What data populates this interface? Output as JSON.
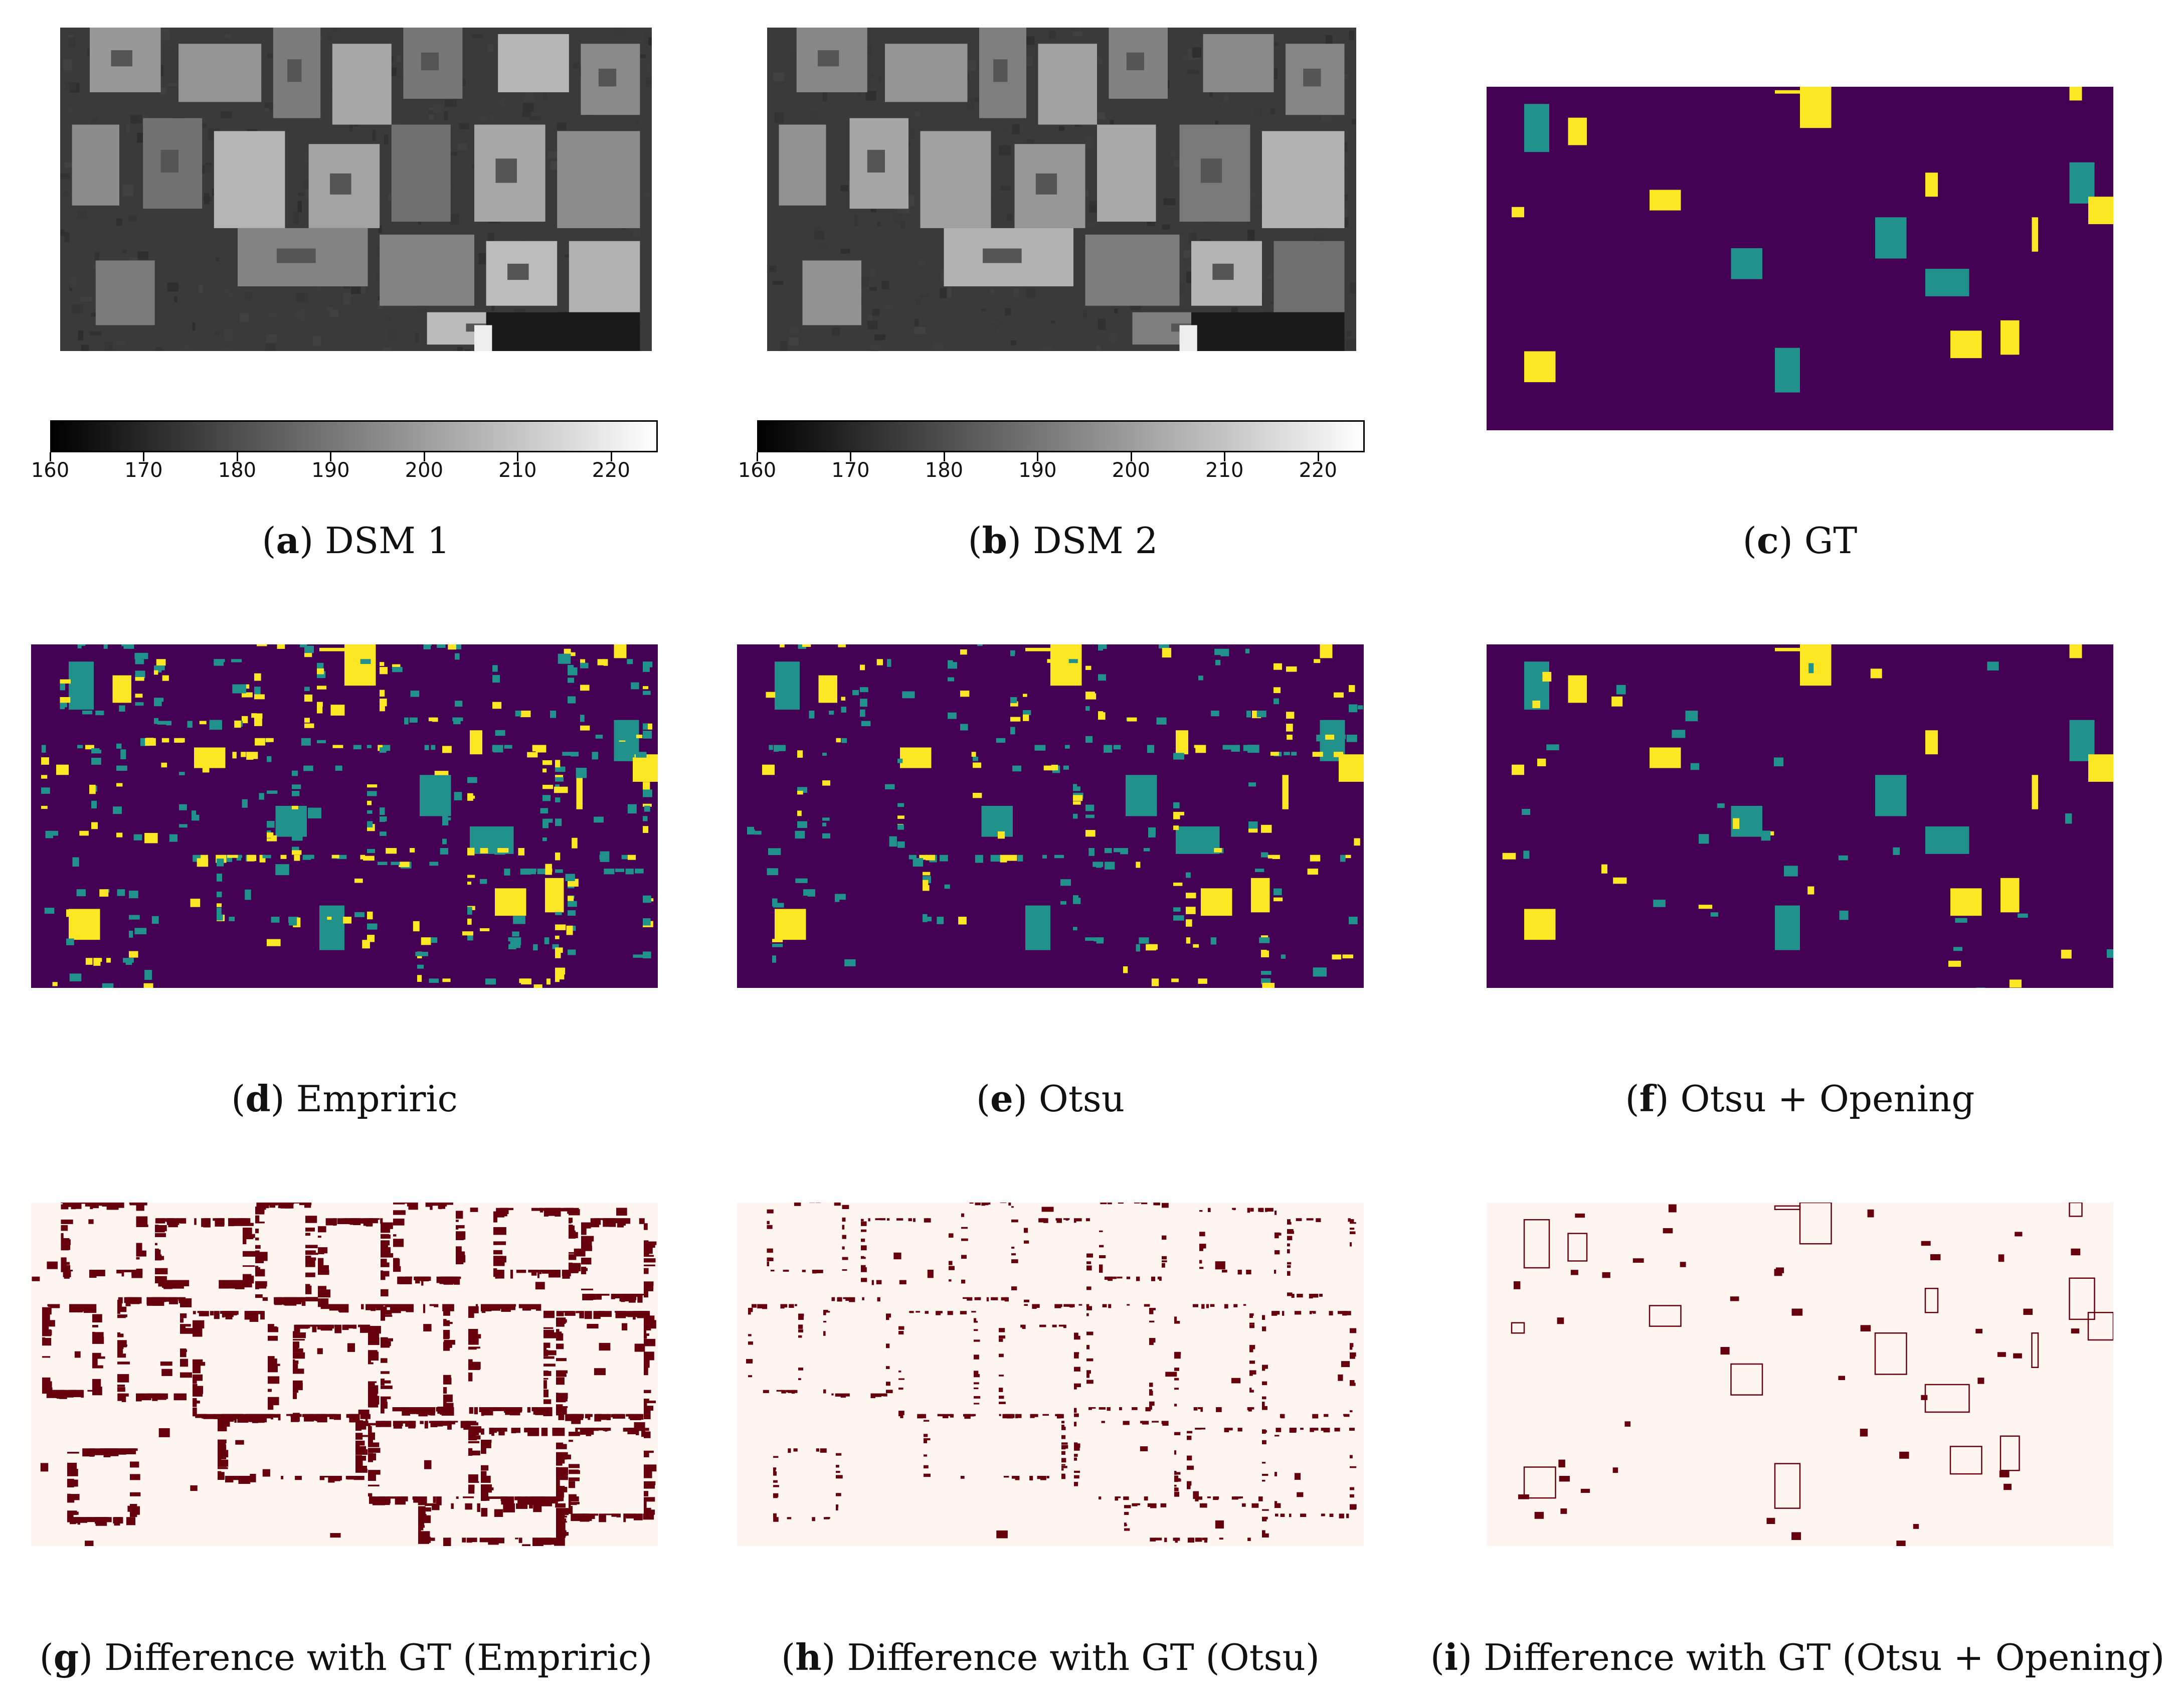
{
  "colorbar": {
    "ticks": [
      "160",
      "170",
      "180",
      "190",
      "200",
      "210",
      "220"
    ],
    "range": [
      160,
      225
    ]
  },
  "panels": [
    {
      "id": "a",
      "label": "a",
      "text": "DSM 1",
      "kind": "dsm"
    },
    {
      "id": "b",
      "label": "b",
      "text": "DSM 2",
      "kind": "dsm"
    },
    {
      "id": "c",
      "label": "c",
      "text": "GT",
      "kind": "classmap"
    },
    {
      "id": "d",
      "label": "d",
      "text": "Empriric",
      "kind": "classmap"
    },
    {
      "id": "e",
      "label": "e",
      "text": "Otsu",
      "kind": "classmap"
    },
    {
      "id": "f",
      "label": "f",
      "text": "Otsu + Opening",
      "kind": "classmap"
    },
    {
      "id": "g",
      "label": "g",
      "text": "Difference with GT (Empriric)",
      "kind": "diffmap"
    },
    {
      "id": "h",
      "label": "h",
      "text": "Difference with GT (Otsu)",
      "kind": "diffmap"
    },
    {
      "id": "i",
      "label": "i",
      "text": "Difference with GT (Otsu + Opening)",
      "kind": "diffmap"
    }
  ],
  "colors": {
    "classmap_background": "#440154",
    "classmap_decrease": "#21918c",
    "classmap_increase": "#fde725",
    "diff_background": "#fff5f0",
    "diff_error": "#67000d",
    "dsm_ground": "#3a3a3a",
    "dsm_building": "#9a9a9a"
  }
}
